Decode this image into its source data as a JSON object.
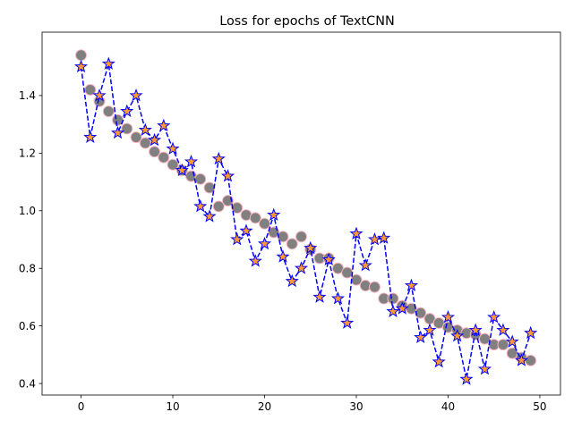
{
  "chart_data": {
    "type": "line",
    "title": "Loss for epochs of TextCNN",
    "xlabel": "",
    "ylabel": "",
    "xlim": [
      -4.25,
      52.25
    ],
    "ylim": [
      0.36,
      1.62
    ],
    "xticks": [
      0,
      10,
      20,
      30,
      40,
      50
    ],
    "yticks": [
      0.4,
      0.6,
      0.8,
      1.0,
      1.2,
      1.4
    ],
    "ytick_labels": [
      "0.4",
      "0.6",
      "0.8",
      "1.0",
      "1.2",
      "1.4"
    ],
    "grid": false,
    "legend": "none",
    "series": [
      {
        "style": "circles",
        "fill": "#808080",
        "edge": "#ffb6c1",
        "x": [
          0,
          1,
          2,
          3,
          4,
          5,
          6,
          7,
          8,
          9,
          10,
          11,
          12,
          13,
          14,
          15,
          16,
          17,
          18,
          19,
          20,
          21,
          22,
          23,
          24,
          25,
          26,
          27,
          28,
          29,
          30,
          31,
          32,
          33,
          34,
          35,
          36,
          37,
          38,
          39,
          40,
          41,
          42,
          43,
          44,
          45,
          46,
          47,
          48,
          49
        ],
        "y": [
          1.54,
          1.42,
          1.38,
          1.345,
          1.315,
          1.285,
          1.255,
          1.235,
          1.205,
          1.185,
          1.16,
          1.14,
          1.12,
          1.11,
          1.08,
          1.015,
          1.035,
          1.01,
          0.985,
          0.975,
          0.955,
          0.925,
          0.91,
          0.885,
          0.91,
          0.865,
          0.835,
          0.835,
          0.8,
          0.785,
          0.76,
          0.74,
          0.735,
          0.695,
          0.695,
          0.67,
          0.66,
          0.645,
          0.625,
          0.61,
          0.595,
          0.585,
          0.575,
          0.57,
          0.555,
          0.535,
          0.535,
          0.505,
          0.49,
          0.48
        ]
      },
      {
        "style": "dashed-stars",
        "line": "#0000ff",
        "fill": "#ff9933",
        "edge": "#0000ff",
        "x": [
          0,
          1,
          2,
          3,
          4,
          5,
          6,
          7,
          8,
          9,
          10,
          11,
          12,
          13,
          14,
          15,
          16,
          17,
          18,
          19,
          20,
          21,
          22,
          23,
          24,
          25,
          26,
          27,
          28,
          29,
          30,
          31,
          32,
          33,
          34,
          35,
          36,
          37,
          38,
          39,
          40,
          41,
          42,
          43,
          44,
          45,
          46,
          47,
          48,
          49
        ],
        "y": [
          1.5,
          1.255,
          1.4,
          1.51,
          1.27,
          1.345,
          1.4,
          1.28,
          1.245,
          1.295,
          1.215,
          1.14,
          1.17,
          1.015,
          0.98,
          1.18,
          1.12,
          0.9,
          0.93,
          0.825,
          0.885,
          0.985,
          0.84,
          0.755,
          0.8,
          0.87,
          0.7,
          0.83,
          0.695,
          0.61,
          0.92,
          0.81,
          0.9,
          0.905,
          0.65,
          0.66,
          0.74,
          0.56,
          0.585,
          0.475,
          0.63,
          0.565,
          0.415,
          0.585,
          0.45,
          0.63,
          0.585,
          0.545,
          0.48,
          0.575
        ]
      }
    ]
  }
}
